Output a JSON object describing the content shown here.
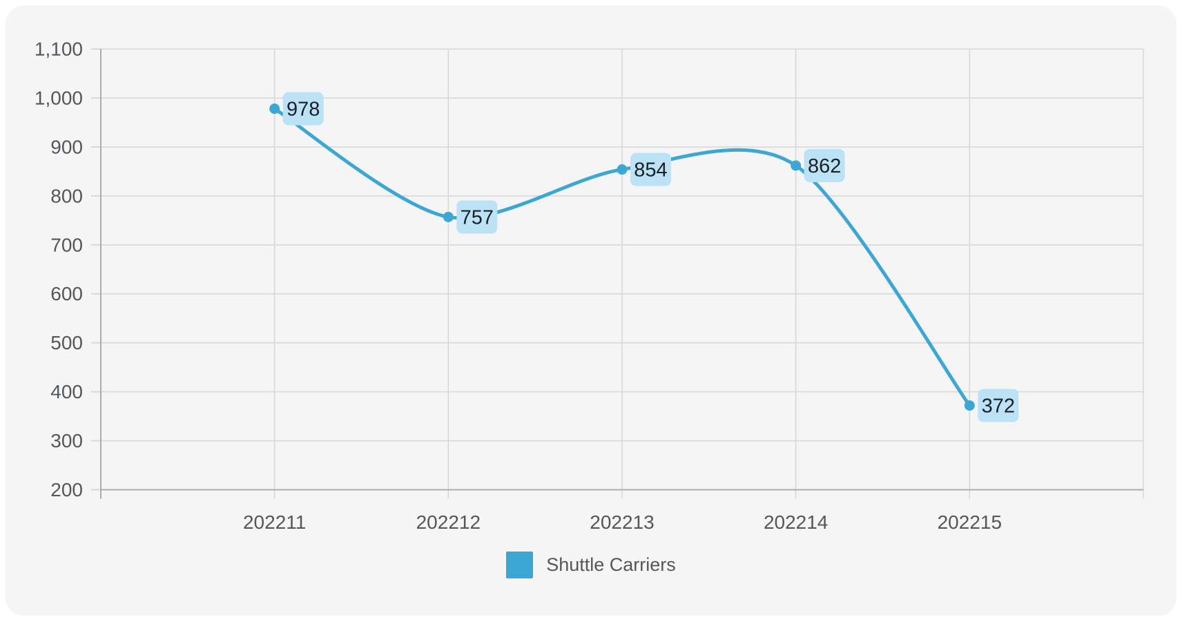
{
  "chart_data": {
    "type": "line",
    "categories": [
      "202211",
      "202212",
      "202213",
      "202214",
      "202215"
    ],
    "series": [
      {
        "name": "Shuttle Carriers",
        "values": [
          978,
          757,
          854,
          862,
          372
        ],
        "color": "#3ca7d4"
      }
    ],
    "title": "",
    "xlabel": "",
    "ylabel": "",
    "ylim": [
      200,
      1100
    ],
    "ytick_interval": 100,
    "ytick_labels": [
      "200",
      "300",
      "400",
      "500",
      "600",
      "700",
      "800",
      "900",
      "1,000",
      "1,100"
    ],
    "grid": true,
    "smooth": true,
    "legend_position": "bottom",
    "data_labels": {
      "shown": true,
      "values": [
        "978",
        "757",
        "854",
        "862",
        "372"
      ],
      "bg_color": "#bce2f5",
      "text_color": "#1a2026"
    },
    "colors": {
      "grid": "#d7d8d9",
      "axis": "#aaacae",
      "tick_text": "#54575a",
      "panel_bg": "#f5f5f6",
      "page_bg": "#ffffff"
    }
  },
  "legend": {
    "items": [
      {
        "label": "Shuttle Carriers",
        "color": "#3ca7d4"
      }
    ]
  }
}
